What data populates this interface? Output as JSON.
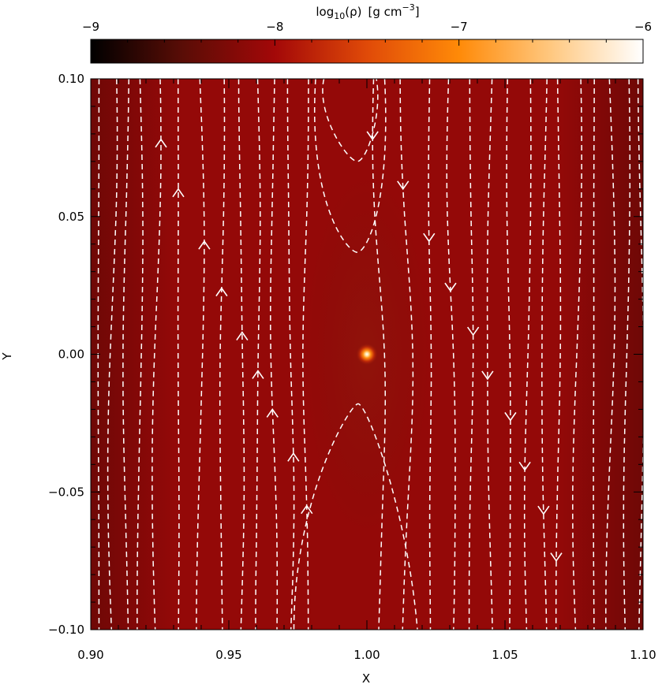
{
  "chart_data": {
    "type": "heatmap",
    "title": "",
    "xlabel": "X",
    "ylabel": "Y",
    "xlim": [
      0.9,
      1.1
    ],
    "ylim": [
      -0.1,
      0.1
    ],
    "x_ticks": [
      0.9,
      0.95,
      1.0,
      1.05,
      1.1
    ],
    "x_tick_labels": [
      "0.90",
      "0.95",
      "1.00",
      "1.05",
      "1.10"
    ],
    "y_ticks": [
      -0.1,
      -0.05,
      0.0,
      0.05,
      0.1
    ],
    "y_tick_labels": [
      "−0.10",
      "−0.05",
      "0.00",
      "0.05",
      "0.10"
    ],
    "colorbar": {
      "label_prefix": "log",
      "label_sub": "10",
      "label_rho": "(ρ)",
      "label_units_open": "[g cm",
      "label_units_exp": "−3",
      "label_units_close": "]",
      "range": [
        -9,
        -6
      ],
      "ticks": [
        -9,
        -8,
        -7,
        -6
      ],
      "tick_labels": [
        "−9",
        "−8",
        "−7",
        "−6"
      ],
      "colors": [
        "#000000",
        "#5a0d06",
        "#a30808",
        "#e04a08",
        "#ff8a08",
        "#ffc880",
        "#ffffff"
      ]
    },
    "background_density": -8.1,
    "peak": {
      "x": 1.0,
      "y": 0.0,
      "value": -6.2
    },
    "streamline_color": "#ffffff",
    "streamlines": [
      {
        "x": 0.903,
        "dir": "up"
      },
      {
        "x": 0.908,
        "dir": "up"
      },
      {
        "x": 0.913,
        "dir": "up"
      },
      {
        "x": 0.918,
        "dir": "up"
      },
      {
        "x": 0.924,
        "dir": "up",
        "arrow_y": 0.078
      },
      {
        "x": 0.932,
        "dir": "up",
        "arrow_y": 0.06
      },
      {
        "x": 0.94,
        "dir": "up",
        "arrow_y": 0.041
      },
      {
        "x": 0.948,
        "dir": "up",
        "arrow_y": 0.024
      },
      {
        "x": 0.955,
        "dir": "up",
        "arrow_y": 0.008
      },
      {
        "x": 0.961,
        "dir": "up",
        "arrow_y": -0.006
      },
      {
        "x": 0.967,
        "dir": "up",
        "arrow_y": -0.02
      },
      {
        "x": 0.973,
        "dir": "up",
        "arrow_y": -0.036
      },
      {
        "x": 0.979,
        "dir": "up",
        "arrow_y": -0.055
      },
      {
        "x": 1.003,
        "dir": "down",
        "arrow_y": 0.078
      },
      {
        "x": 1.013,
        "dir": "down",
        "arrow_y": 0.06
      },
      {
        "x": 1.022,
        "dir": "down",
        "arrow_y": 0.041
      },
      {
        "x": 1.03,
        "dir": "down",
        "arrow_y": 0.023
      },
      {
        "x": 1.037,
        "dir": "down",
        "arrow_y": 0.007
      },
      {
        "x": 1.044,
        "dir": "down",
        "arrow_y": -0.009
      },
      {
        "x": 1.051,
        "dir": "down",
        "arrow_y": -0.024
      },
      {
        "x": 1.058,
        "dir": "down",
        "arrow_y": -0.042
      },
      {
        "x": 1.064,
        "dir": "down",
        "arrow_y": -0.058
      },
      {
        "x": 1.069,
        "dir": "down",
        "arrow_y": -0.075
      },
      {
        "x": 1.076,
        "dir": "down"
      },
      {
        "x": 1.082,
        "dir": "down"
      },
      {
        "x": 1.088,
        "dir": "down"
      },
      {
        "x": 1.094,
        "dir": "down"
      },
      {
        "x": 1.099,
        "dir": "down"
      }
    ],
    "separatrix": [
      {
        "side": "top",
        "tip_y": 0.037,
        "edge_x_left": 0.99,
        "edge_x_right": 1.003
      },
      {
        "side": "top",
        "tip_y": 0.07,
        "edge_x_left": 0.993,
        "edge_x_right": 1.0
      },
      {
        "side": "bottom",
        "tip_y": -0.018,
        "edge_x_left": 0.985,
        "edge_x_right": 1.012
      }
    ],
    "grid": false,
    "legend": "none"
  }
}
